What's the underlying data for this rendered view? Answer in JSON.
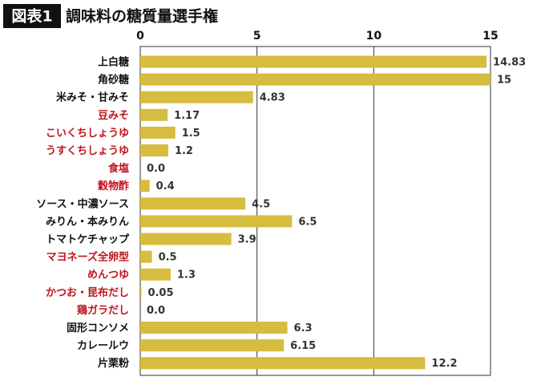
{
  "chart_data": {
    "type": "bar",
    "orientation": "horizontal",
    "title_badge": "図表1",
    "title": "調味料の糖質量選手権",
    "categories": [
      "上白糖",
      "角砂糖",
      "米みそ・甘みそ",
      "豆みそ",
      "こいくちしょうゆ",
      "うすくちしょうゆ",
      "食塩",
      "穀物酢",
      "ソース・中濃ソース",
      "みりん・本みりん",
      "トマトケチャップ",
      "マヨネーズ全卵型",
      "めんつゆ",
      "かつお・昆布だし",
      "鶏ガラだし",
      "固形コンソメ",
      "カレールウ",
      "片栗粉"
    ],
    "category_colors": [
      "#111111",
      "#111111",
      "#111111",
      "#c0141c",
      "#c0141c",
      "#c0141c",
      "#c0141c",
      "#c0141c",
      "#111111",
      "#111111",
      "#111111",
      "#c0141c",
      "#c0141c",
      "#c0141c",
      "#c0141c",
      "#111111",
      "#111111",
      "#111111"
    ],
    "values": [
      14.83,
      15,
      4.83,
      1.17,
      1.5,
      1.2,
      0,
      0.4,
      4.5,
      6.5,
      3.9,
      0.5,
      1.3,
      0.05,
      0,
      6.3,
      6.15,
      12.2
    ],
    "value_labels": [
      "14.83",
      "15",
      "4.83",
      "1.17",
      "1.5",
      "1.2",
      "0.0",
      "0.4",
      "4.5",
      "6.5",
      "3.9",
      "0.5",
      "1.3",
      "0.05",
      "0.0",
      "6.3",
      "6.15",
      "12.2"
    ],
    "color": "#d6bc3f",
    "xlim": [
      0,
      15
    ],
    "xticks": [
      0,
      5,
      10,
      15
    ],
    "grid": true
  }
}
